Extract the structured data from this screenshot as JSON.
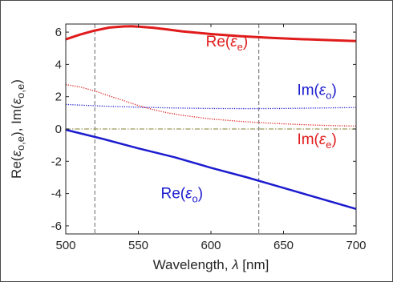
{
  "chart_data": {
    "type": "line",
    "xlabel_prefix": "Wavelength, ",
    "xlabel_symbol": "λ",
    "xlabel_suffix": " [nm]",
    "ylabel": {
      "re": "Re(",
      "im": ", Im(",
      "eps": "ε",
      "sub": "o,e",
      "close": ")"
    },
    "xlim": [
      500,
      700
    ],
    "ylim": [
      -6.5,
      6.5
    ],
    "xticks": [
      500,
      550,
      600,
      650,
      700
    ],
    "yticks": [
      -6,
      -4,
      -2,
      0,
      2,
      4,
      6
    ],
    "grid": false,
    "vlines": [
      520,
      633
    ],
    "series": [
      {
        "id": "re_e",
        "color": "#e01b1b",
        "style": "solid",
        "width": 3,
        "x": [
          500,
          510,
          520,
          530,
          540,
          545,
          550,
          560,
          570,
          580,
          600,
          620,
          640,
          660,
          680,
          700
        ],
        "y": [
          5.55,
          5.85,
          6.1,
          6.28,
          6.35,
          6.36,
          6.34,
          6.27,
          6.17,
          6.05,
          5.88,
          5.75,
          5.65,
          5.57,
          5.51,
          5.45
        ]
      },
      {
        "id": "im_o",
        "color": "#1c1ccf",
        "style": "dotted",
        "width": 1.3,
        "x": [
          500,
          525,
          550,
          575,
          600,
          625,
          650,
          675,
          700
        ],
        "y": [
          1.52,
          1.42,
          1.35,
          1.3,
          1.27,
          1.26,
          1.27,
          1.3,
          1.33
        ]
      },
      {
        "id": "im_e",
        "color": "#e01b1b",
        "style": "dotted",
        "width": 1.3,
        "x": [
          500,
          510,
          520,
          530,
          540,
          550,
          560,
          570,
          580,
          600,
          620,
          640,
          660,
          680,
          700
        ],
        "y": [
          2.75,
          2.6,
          2.35,
          2.05,
          1.75,
          1.45,
          1.2,
          1.0,
          0.85,
          0.62,
          0.47,
          0.36,
          0.28,
          0.22,
          0.18
        ]
      },
      {
        "id": "zero_ref",
        "color": "#9a9a5a",
        "style": "dashdot",
        "width": 1.2,
        "x": [
          500,
          700
        ],
        "y": [
          0,
          0
        ]
      },
      {
        "id": "re_o",
        "color": "#1c1ccf",
        "style": "solid",
        "width": 2.5,
        "x": [
          500,
          525,
          550,
          575,
          600,
          625,
          650,
          675,
          700
        ],
        "y": [
          -0.05,
          -0.6,
          -1.2,
          -1.75,
          -2.4,
          -3.0,
          -3.65,
          -4.3,
          -4.95
        ]
      }
    ],
    "annotations": [
      {
        "id": "re_e",
        "prefix": "Re(",
        "sym": "ε",
        "sub": "e",
        "suffix": ")",
        "color": "#e01b1b",
        "x": 611,
        "y": 5.1
      },
      {
        "id": "im_o",
        "prefix": "Im(",
        "sym": "ε",
        "sub": "o",
        "suffix": ")",
        "color": "#1c1ccf",
        "x": 673,
        "y": 2.1
      },
      {
        "id": "im_e",
        "prefix": "Im(",
        "sym": "ε",
        "sub": "e",
        "suffix": ")",
        "color": "#e01b1b",
        "x": 673,
        "y": -0.95
      },
      {
        "id": "re_o",
        "prefix": "Re(",
        "sym": "ε",
        "sub": "o",
        "suffix": ")",
        "color": "#1c1ccf",
        "x": 580,
        "y": -4.3
      }
    ]
  }
}
